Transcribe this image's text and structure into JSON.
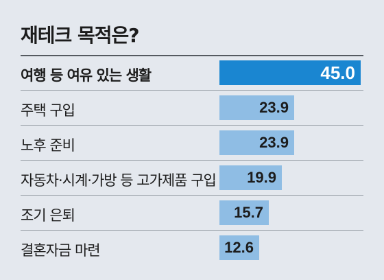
{
  "chart_data": {
    "type": "bar",
    "orientation": "horizontal",
    "title": "재테크 목적은?",
    "categories": [
      "여행 등 여유 있는 생활",
      "주택 구입",
      "노후 준비",
      "자동차·시계·가방 등 고가제품 구입",
      "조기 은퇴",
      "결혼자금 마련"
    ],
    "values": [
      45.0,
      23.9,
      23.9,
      19.9,
      15.7,
      12.6
    ],
    "value_labels": [
      "45.0",
      "23.9",
      "23.9",
      "19.9",
      "15.7",
      "12.6"
    ],
    "highlight_index": 0,
    "xlim": [
      0,
      45
    ],
    "grid": false,
    "legend": "none",
    "colors": {
      "background": "#e4e8ee",
      "bar": "#8fbde4",
      "highlight_bar": "#1a86d1",
      "text": "#1c1c1c",
      "highlight_text": "#ffffff"
    }
  }
}
